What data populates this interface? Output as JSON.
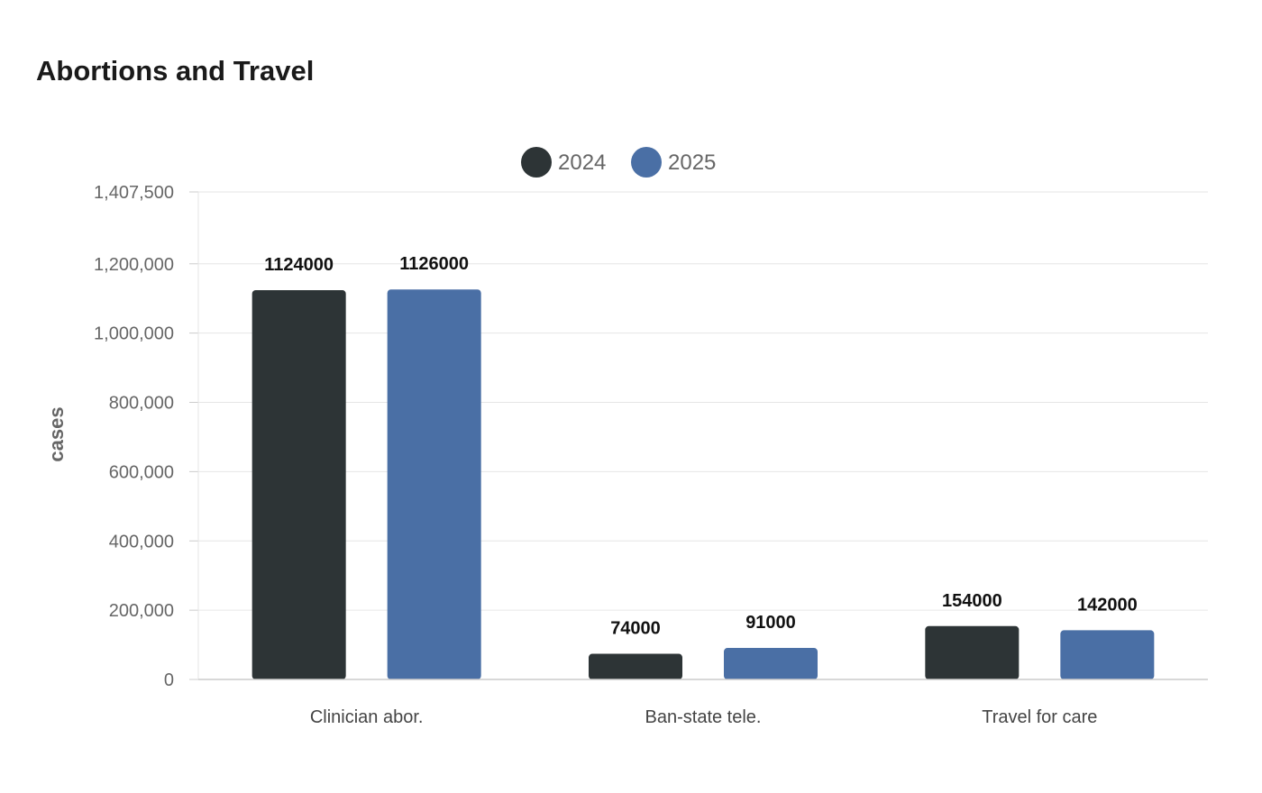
{
  "chart_data": {
    "type": "bar",
    "title": "Abortions and Travel",
    "ylabel": "cases",
    "xlabel": "",
    "categories": [
      "Clinician abor.",
      "Ban-state tele.",
      "Travel for care"
    ],
    "series": [
      {
        "name": "2024",
        "color": "#2d3436",
        "values": [
          1124000,
          74000,
          154000
        ]
      },
      {
        "name": "2025",
        "color": "#4a6fa5",
        "values": [
          1126000,
          91000,
          142000
        ]
      }
    ],
    "ylim": [
      0,
      1407500
    ],
    "yticks": [
      0,
      200000,
      400000,
      600000,
      800000,
      1000000,
      1200000,
      1407500
    ],
    "ytick_labels": [
      "0",
      "200,000",
      "400,000",
      "600,000",
      "800,000",
      "1,000,000",
      "1,200,000",
      "1,407,500"
    ],
    "grid": true,
    "legend_position": "top-center"
  }
}
